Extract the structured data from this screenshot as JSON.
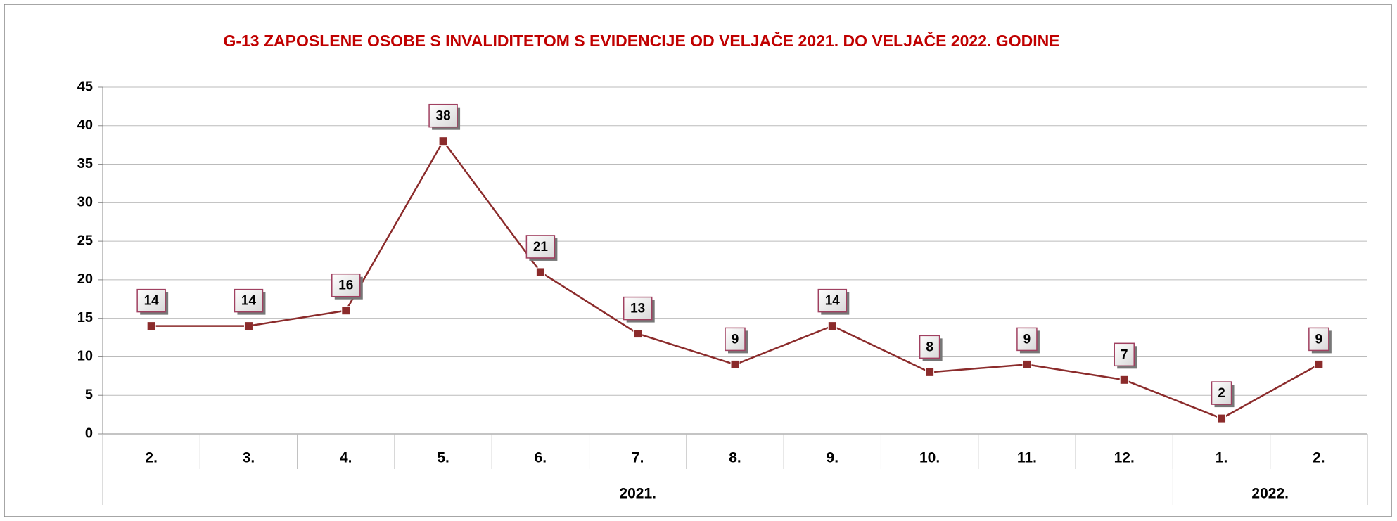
{
  "chart_data": {
    "type": "line",
    "title": "G-13 ZAPOSLENE OSOBE S INVALIDITETOM S EVIDENCIJE OD VELJAČE 2021. DO VELJAČE 2022. GODINE",
    "categories": [
      "2.",
      "3.",
      "4.",
      "5.",
      "6.",
      "7.",
      "8.",
      "9.",
      "10.",
      "11.",
      "12.",
      "1.",
      "2."
    ],
    "category_groups": [
      {
        "label": "2021.",
        "count": 11
      },
      {
        "label": "2022.",
        "count": 2
      }
    ],
    "series": [
      {
        "color": "#8b2b2b",
        "values": [
          14,
          14,
          16,
          38,
          21,
          13,
          9,
          14,
          8,
          9,
          7,
          2,
          9
        ]
      }
    ],
    "ylim": [
      0,
      45
    ],
    "yticks": [
      0,
      5,
      10,
      15,
      20,
      25,
      30,
      35,
      40,
      45
    ],
    "grid": true,
    "data_labels": true
  }
}
